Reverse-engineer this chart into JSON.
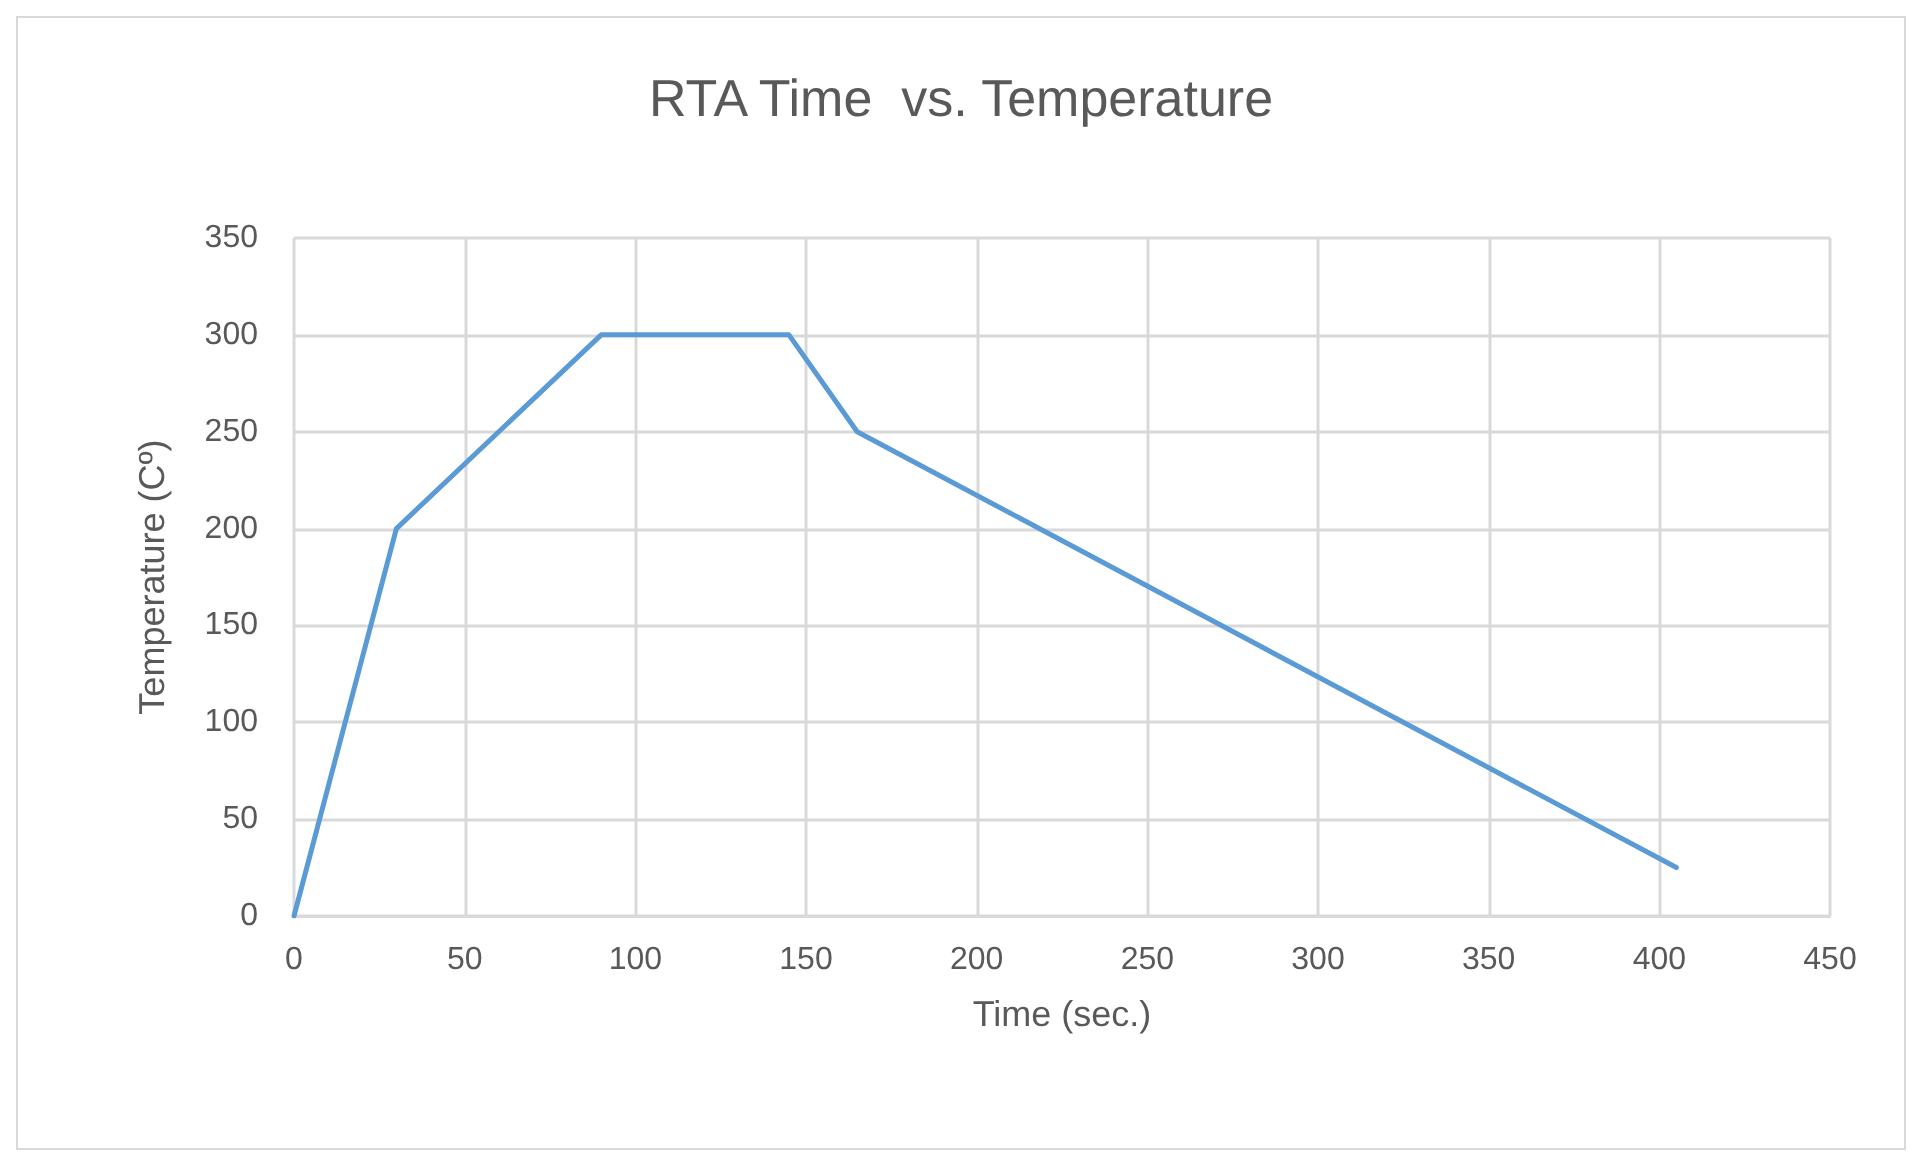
{
  "chart_data": {
    "type": "line",
    "title": "RTA Time  vs. Temperature",
    "xlabel": "Time (sec.)",
    "ylabel": "Temperature (Cº)",
    "x": [
      0,
      30,
      90,
      145,
      165,
      405
    ],
    "series": [
      {
        "color": "#5b9bd5",
        "values": [
          0,
          200,
          300,
          300,
          250,
          25
        ]
      }
    ],
    "xlim": [
      0,
      450
    ],
    "xticks": [
      0,
      50,
      100,
      150,
      200,
      250,
      300,
      350,
      400,
      450
    ],
    "ylim": [
      0,
      350
    ],
    "yticks": [
      0,
      50,
      100,
      150,
      200,
      250,
      300,
      350
    ],
    "grid": true,
    "marker": "none",
    "line_style": "solid"
  }
}
